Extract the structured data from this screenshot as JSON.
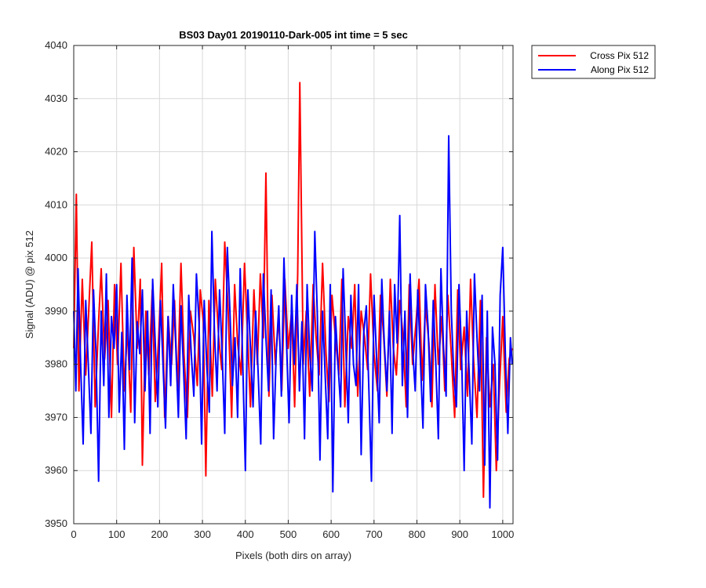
{
  "chart_data": {
    "type": "line",
    "title": "BS03 Day01 20190110-Dark-005 int time = 5 sec",
    "xlabel": "Pixels (both dirs on array)",
    "ylabel": "Signal (ADU) @ pix 512",
    "xlim": [
      0,
      1024
    ],
    "ylim": [
      3950,
      4040
    ],
    "xticks": [
      0,
      100,
      200,
      300,
      400,
      500,
      600,
      700,
      800,
      900,
      1000
    ],
    "yticks": [
      3950,
      3960,
      3970,
      3980,
      3990,
      4000,
      4010,
      4020,
      4030,
      4040
    ],
    "grid": true,
    "legend_position": "outside-top-right",
    "series": [
      {
        "name": "Cross Pix 512",
        "color": "#ff0000",
        "x": [
          0,
          6,
          12,
          20,
          28,
          35,
          42,
          50,
          58,
          64,
          72,
          80,
          88,
          95,
          102,
          110,
          118,
          125,
          133,
          140,
          148,
          155,
          160,
          168,
          175,
          183,
          190,
          198,
          205,
          212,
          220,
          228,
          235,
          242,
          250,
          257,
          265,
          272,
          280,
          288,
          295,
          302,
          308,
          315,
          323,
          330,
          338,
          345,
          352,
          360,
          368,
          375,
          382,
          390,
          398,
          405,
          412,
          420,
          428,
          435,
          442,
          448,
          455,
          462,
          470,
          478,
          485,
          492,
          500,
          508,
          515,
          522,
          527,
          535,
          542,
          550,
          558,
          565,
          572,
          580,
          588,
          595,
          602,
          610,
          618,
          625,
          632,
          640,
          648,
          655,
          662,
          670,
          678,
          685,
          692,
          700,
          708,
          715,
          722,
          730,
          738,
          745,
          752,
          760,
          768,
          775,
          782,
          790,
          798,
          805,
          812,
          820,
          828,
          835,
          842,
          850,
          858,
          865,
          872,
          880,
          888,
          895,
          902,
          910,
          918,
          925,
          932,
          940,
          948,
          955,
          962,
          970,
          978,
          985,
          992,
          1000,
          1008,
          1015,
          1022
        ],
        "y": [
          3983,
          4012,
          3975,
          3996,
          3978,
          3990,
          4003,
          3972,
          3988,
          3998,
          3981,
          3992,
          3970,
          3995,
          3980,
          3999,
          3975,
          3987,
          3971,
          4002,
          3983,
          3996,
          3961,
          3990,
          3978,
          3994,
          3973,
          3985,
          3999,
          3970,
          3989,
          3980,
          3992,
          3975,
          3999,
          3982,
          3970,
          3990,
          3985,
          3976,
          3994,
          3988,
          3959,
          3992,
          3974,
          3996,
          3985,
          3979,
          4003,
          3990,
          3970,
          3995,
          3984,
          3978,
          3999,
          3986,
          3972,
          3994,
          3980,
          3997,
          3985,
          4016,
          3974,
          3993,
          3980,
          3989,
          3975,
          3996,
          3983,
          3990,
          3972,
          3997,
          4033,
          3980,
          3990,
          3974,
          3995,
          3985,
          3978,
          3999,
          3982,
          3973,
          3993,
          3985,
          3978,
          3996,
          3972,
          3989,
          3983,
          3995,
          3974,
          3990,
          3985,
          3979,
          3997,
          3982,
          3975,
          3993,
          3986,
          3974,
          3996,
          3983,
          3978,
          3992,
          3985,
          3972,
          3995,
          3980,
          3988,
          3996,
          3977,
          3991,
          3984,
          3972,
          3995,
          3980,
          3989,
          3975,
          3993,
          3982,
          3970,
          3994,
          3979,
          3987,
          3974,
          3996,
          3981,
          3970,
          3992,
          3955,
          3985,
          3972,
          3980,
          3960,
          3975,
          3989,
          3971,
          3981,
          3983
        ]
      },
      {
        "name": "Along Pix 512",
        "color": "#0000ff",
        "x": [
          0,
          5,
          10,
          16,
          22,
          28,
          35,
          40,
          46,
          52,
          58,
          64,
          70,
          76,
          82,
          88,
          94,
          100,
          106,
          112,
          118,
          124,
          130,
          136,
          142,
          148,
          154,
          160,
          166,
          172,
          178,
          184,
          190,
          196,
          202,
          208,
          214,
          220,
          226,
          232,
          238,
          244,
          250,
          256,
          262,
          268,
          274,
          280,
          286,
          292,
          298,
          304,
          310,
          316,
          322,
          328,
          334,
          340,
          346,
          352,
          358,
          364,
          370,
          376,
          382,
          388,
          394,
          400,
          406,
          412,
          418,
          424,
          430,
          436,
          442,
          448,
          454,
          460,
          466,
          472,
          478,
          484,
          490,
          496,
          502,
          508,
          514,
          520,
          526,
          532,
          538,
          544,
          550,
          556,
          562,
          568,
          574,
          580,
          586,
          592,
          598,
          604,
          610,
          616,
          622,
          628,
          634,
          640,
          646,
          652,
          658,
          664,
          670,
          676,
          682,
          688,
          694,
          700,
          706,
          712,
          718,
          724,
          730,
          736,
          742,
          748,
          754,
          760,
          766,
          772,
          778,
          784,
          790,
          796,
          802,
          808,
          814,
          820,
          826,
          832,
          838,
          844,
          850,
          856,
          862,
          868,
          874,
          880,
          886,
          892,
          898,
          904,
          910,
          916,
          922,
          928,
          934,
          940,
          946,
          952,
          958,
          964,
          970,
          976,
          982,
          988,
          994,
          1000,
          1006,
          1012,
          1018,
          1022
        ],
        "y": [
          3990,
          3975,
          3998,
          3980,
          3965,
          3992,
          3978,
          3967,
          3994,
          3982,
          3958,
          3990,
          3976,
          3997,
          3970,
          3989,
          3983,
          3995,
          3971,
          3986,
          3964,
          3993,
          3979,
          4000,
          3969,
          3988,
          3982,
          3994,
          3975,
          3990,
          3967,
          3996,
          3984,
          3972,
          3992,
          3980,
          3968,
          3989,
          3976,
          3995,
          3983,
          3970,
          3991,
          3979,
          3966,
          3993,
          3982,
          3974,
          3997,
          3988,
          3965,
          3992,
          3980,
          3971,
          4005,
          3986,
          3975,
          3994,
          3982,
          3967,
          4002,
          3990,
          3976,
          3985,
          3970,
          3998,
          3980,
          3960,
          3994,
          3983,
          3972,
          3990,
          3978,
          3965,
          3997,
          3985,
          3975,
          3994,
          3966,
          3982,
          3991,
          3974,
          4000,
          3984,
          3969,
          3993,
          3980,
          3995,
          3975,
          3988,
          3966,
          3995,
          3982,
          3975,
          4005,
          3989,
          3962,
          3990,
          3978,
          3966,
          3995,
          3956,
          3989,
          3980,
          3972,
          3998,
          3984,
          3969,
          3993,
          3980,
          3976,
          3995,
          3963,
          3986,
          3991,
          3975,
          3958,
          3993,
          3981,
          3969,
          3996,
          3984,
          3975,
          3990,
          3967,
          3995,
          3984,
          4008,
          3976,
          3990,
          3970,
          3997,
          3983,
          3975,
          3994,
          3981,
          3968,
          3995,
          3987,
          3973,
          3992,
          3980,
          3966,
          3998,
          3983,
          3974,
          4023,
          3990,
          3978,
          3972,
          3995,
          3982,
          3960,
          3990,
          3978,
          3965,
          3997,
          3985,
          3975,
          3993,
          3961,
          3990,
          3953,
          3987,
          3980,
          3962,
          3993,
          4002,
          3982,
          3967,
          3985,
          3980
        ]
      }
    ]
  }
}
